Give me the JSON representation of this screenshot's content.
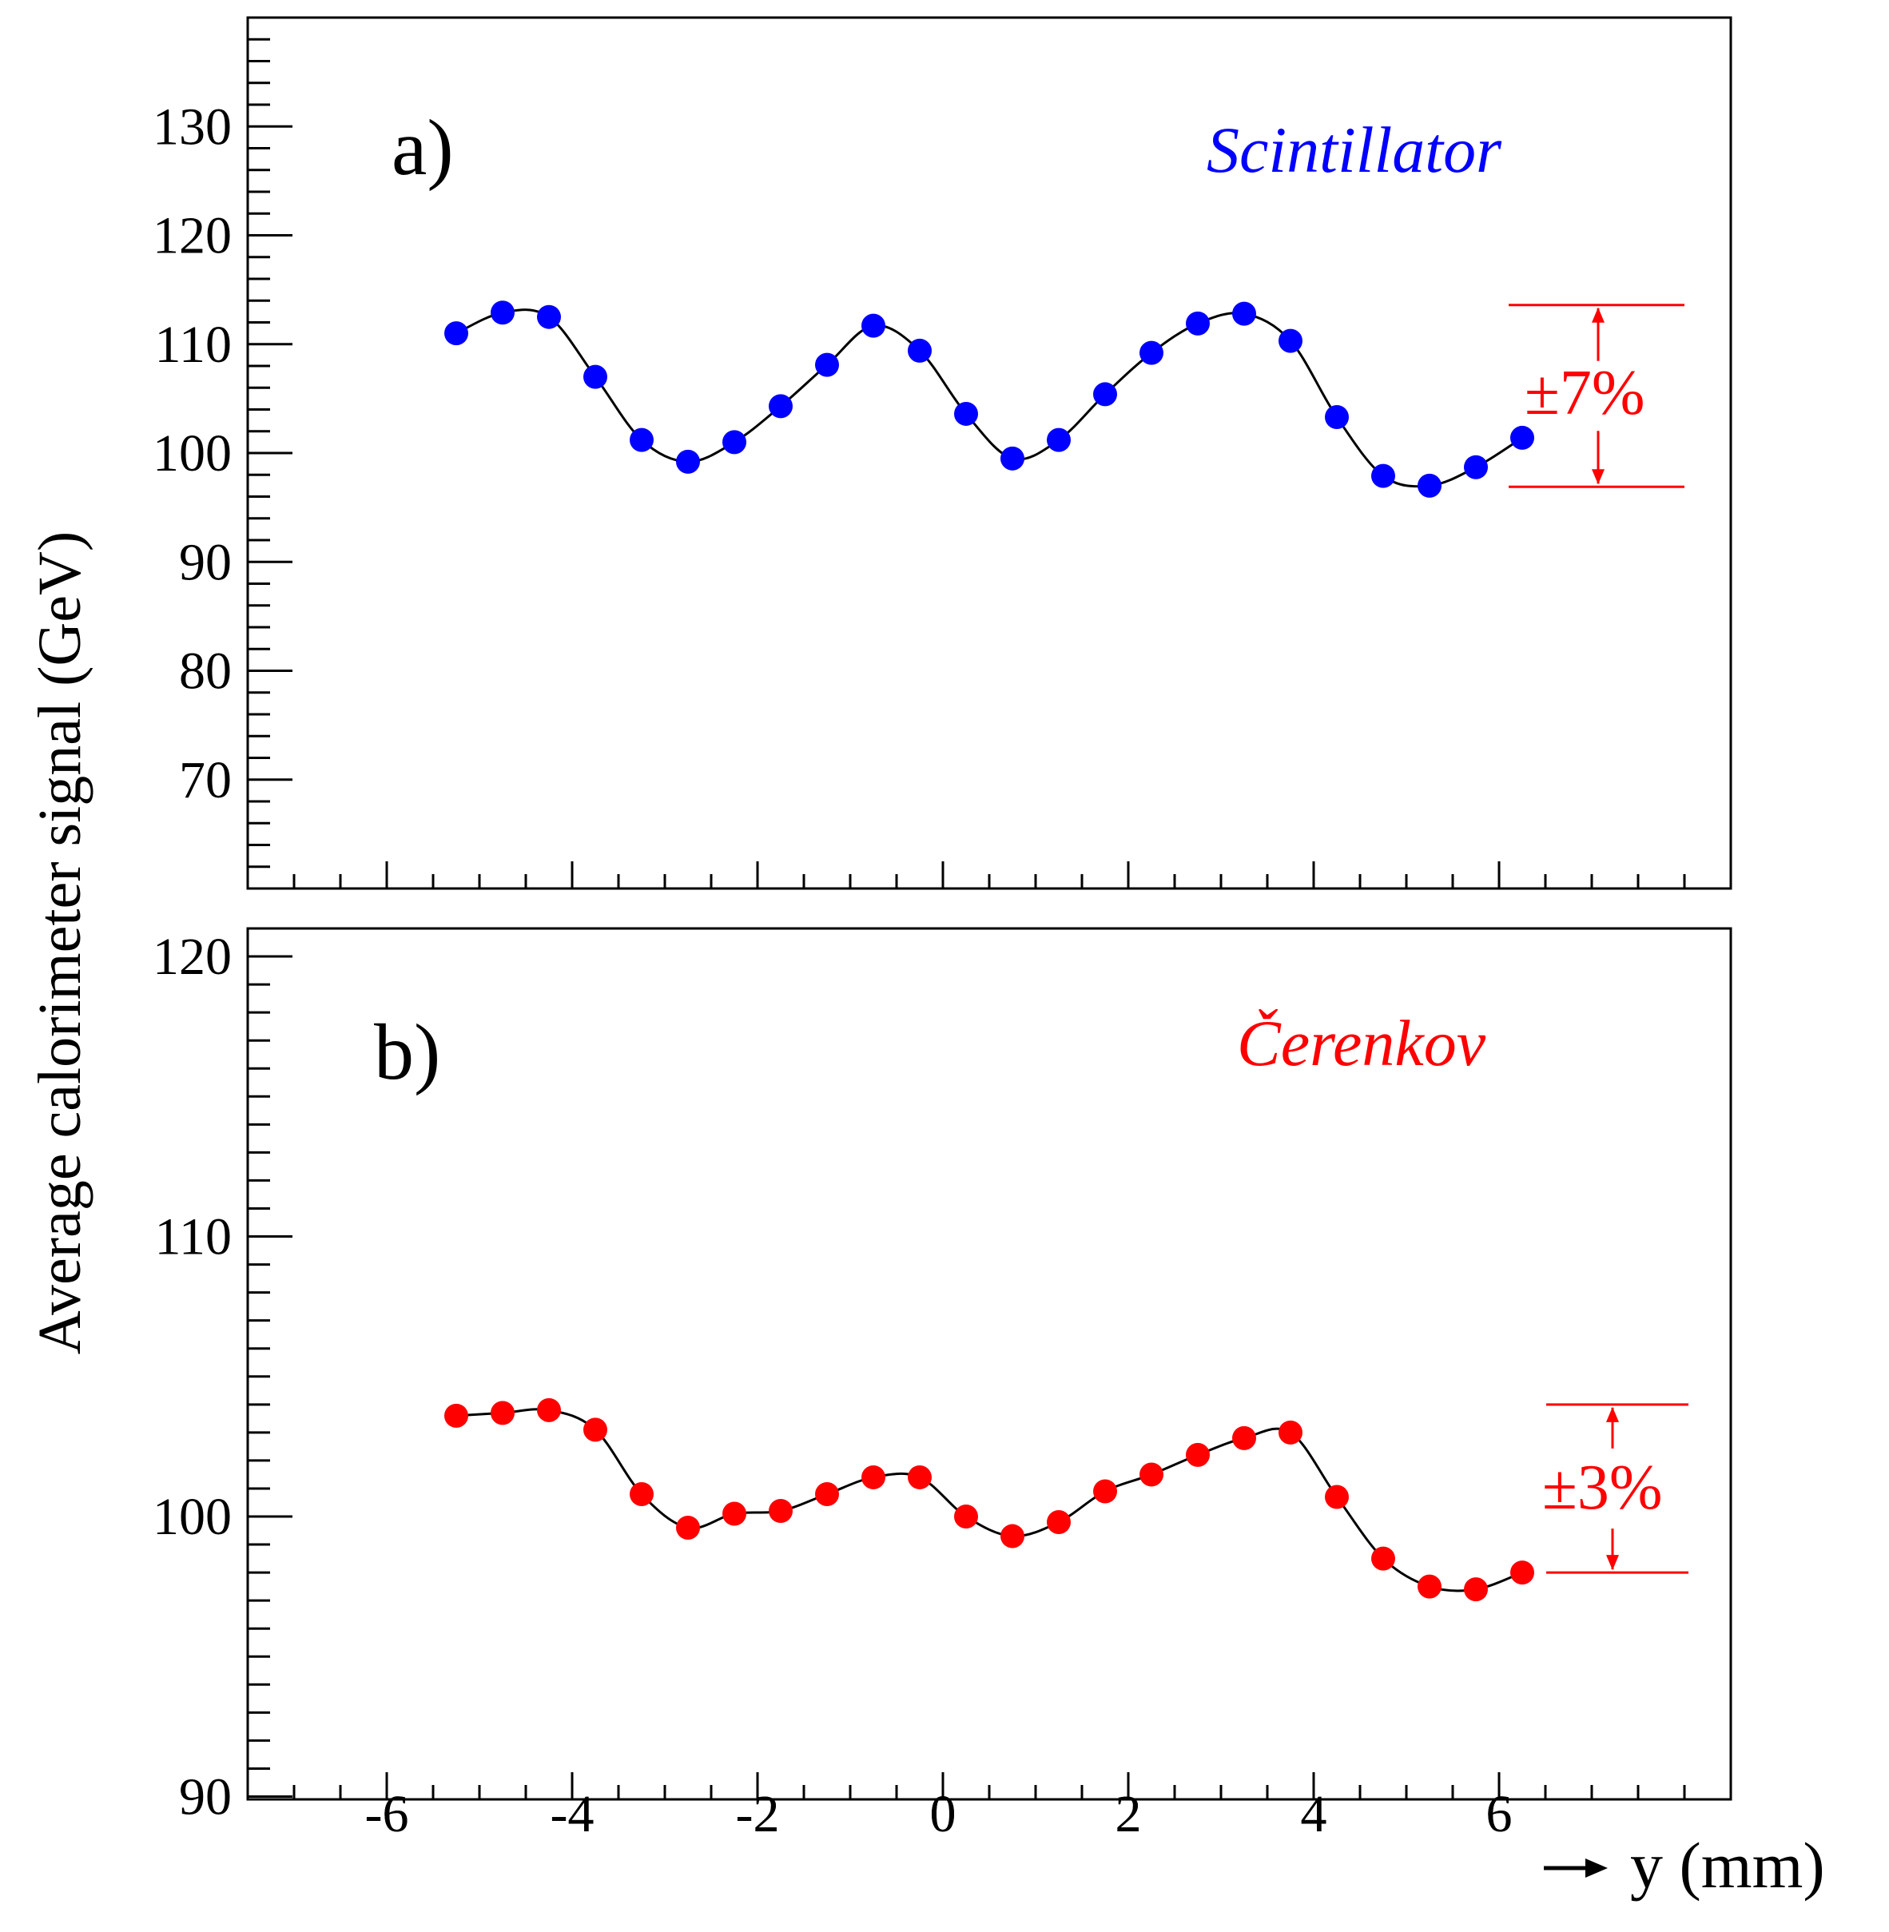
{
  "y_axis_title": "Average calorimeter signal (GeV)",
  "x_axis_title": "y (mm)",
  "chart_data": [
    {
      "type": "scatter",
      "panel_label": "a)",
      "legend_label": "Scintillator",
      "color": "#0000ff",
      "band_label": "±7%",
      "band_color": "#ff0000",
      "band": [
        96.9,
        113.6
      ],
      "xlim": [
        -7.5,
        8.5
      ],
      "ylim": [
        60,
        140
      ],
      "x_ticks": [
        -6,
        -4,
        -2,
        0,
        2,
        4,
        6
      ],
      "x_tick_labels": [
        "-6",
        "-4",
        "-2",
        "0",
        "2",
        "4",
        "6"
      ],
      "y_ticks": [
        70,
        80,
        90,
        100,
        110,
        120,
        130
      ],
      "y_tick_labels": [
        "70",
        "80",
        "90",
        "100",
        "110",
        "120",
        "130"
      ],
      "x": [
        -5.25,
        -4.75,
        -4.25,
        -3.75,
        -3.25,
        -2.75,
        -2.25,
        -1.75,
        -1.25,
        -0.75,
        -0.25,
        0.25,
        0.75,
        1.25,
        1.75,
        2.25,
        2.75,
        3.25,
        3.75,
        4.25,
        4.75,
        5.25,
        5.75,
        6.25
      ],
      "y": [
        111.0,
        112.9,
        112.5,
        107.0,
        101.2,
        99.2,
        101.0,
        104.3,
        108.1,
        111.7,
        109.4,
        103.6,
        99.5,
        101.2,
        105.4,
        109.2,
        111.9,
        112.8,
        110.3,
        103.3,
        97.9,
        97.0,
        98.7,
        101.4
      ]
    },
    {
      "type": "scatter",
      "panel_label": "b)",
      "legend_label": "Čerenkov",
      "color": "#ff0000",
      "band_label": "±3%",
      "band_color": "#ff0000",
      "band": [
        98.0,
        104.0
      ],
      "xlim": [
        -7.5,
        8.5
      ],
      "ylim": [
        89.9,
        121.0
      ],
      "x_ticks": [
        -6,
        -4,
        -2,
        0,
        2,
        4,
        6
      ],
      "x_tick_labels": [
        "-6",
        "-4",
        "-2",
        "0",
        "2",
        "4",
        "6"
      ],
      "y_ticks": [
        90,
        100,
        110,
        120
      ],
      "y_tick_labels": [
        "90",
        "100",
        "110",
        "120"
      ],
      "x": [
        -5.25,
        -4.75,
        -4.25,
        -3.75,
        -3.25,
        -2.75,
        -2.25,
        -1.75,
        -1.25,
        -0.75,
        -0.25,
        0.25,
        0.75,
        1.25,
        1.75,
        2.25,
        2.75,
        3.25,
        3.75,
        4.25,
        4.75,
        5.25,
        5.75,
        6.25
      ],
      "y": [
        103.6,
        103.7,
        103.8,
        103.1,
        100.8,
        99.6,
        100.1,
        100.2,
        100.8,
        101.4,
        101.4,
        100.0,
        99.3,
        99.8,
        100.9,
        101.5,
        102.2,
        102.8,
        103.0,
        100.7,
        98.5,
        97.5,
        97.4,
        98.0
      ]
    }
  ]
}
